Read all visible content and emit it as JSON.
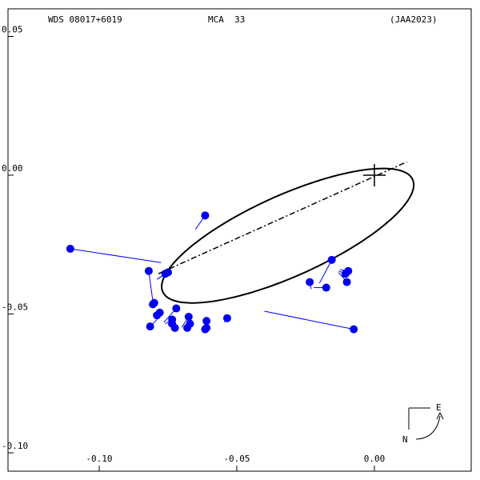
{
  "header": {
    "left": "WDS 08017+6019",
    "center": "MCA  33",
    "right": "(JAA2023)"
  },
  "compass": {
    "east": "E",
    "north": "N"
  },
  "chart_data": {
    "type": "scatter",
    "title": "",
    "xlabel": "",
    "ylabel": "",
    "xlim": [
      -0.11,
      0.01
    ],
    "ylim": [
      -0.1,
      0.05
    ],
    "x_ticks": [
      {
        "value": -0.1,
        "label": "-0.10"
      },
      {
        "value": -0.05,
        "label": "-0.05"
      },
      {
        "value": 0.0,
        "label": "0.00"
      }
    ],
    "y_ticks": [
      {
        "value": 0.05,
        "label": "0.05"
      },
      {
        "value": 0.0,
        "label": "0.00"
      },
      {
        "value": -0.05,
        "label": "-0.05"
      },
      {
        "value": -0.1,
        "label": "-0.10"
      }
    ],
    "primary": {
      "x": 0.0,
      "y": 0.0
    },
    "orbit_ellipse": {
      "center_x": -0.0315,
      "center_y": -0.0218,
      "semi_major": 0.0497,
      "semi_minor": 0.0146,
      "angle_deg": 24.0
    },
    "line_of_nodes": [
      [
        -0.0785,
        -0.0355
      ],
      [
        0.0118,
        0.0048
      ]
    ],
    "observations": [
      {
        "x": -0.1105,
        "y": -0.0265,
        "ox": -0.0775,
        "oy": -0.0315
      },
      {
        "x": -0.0615,
        "y": -0.0145,
        "ox": -0.065,
        "oy": -0.0195
      },
      {
        "x": -0.082,
        "y": -0.0345,
        "ox": -0.0805,
        "oy": -0.0455
      },
      {
        "x": -0.076,
        "y": -0.0355,
        "ox": -0.079,
        "oy": -0.0375
      },
      {
        "x": -0.075,
        "y": -0.035,
        "ox": -0.079,
        "oy": -0.0375
      },
      {
        "x": -0.08,
        "y": -0.046,
        "ox": -0.081,
        "oy": -0.047
      },
      {
        "x": -0.0805,
        "y": -0.0465,
        "ox": -0.081,
        "oy": -0.047
      },
      {
        "x": -0.079,
        "y": -0.0505,
        "ox": -0.0805,
        "oy": -0.05
      },
      {
        "x": -0.078,
        "y": -0.0495,
        "ox": -0.08,
        "oy": -0.0505
      },
      {
        "x": -0.0815,
        "y": -0.0545,
        "ox": -0.079,
        "oy": -0.052
      },
      {
        "x": -0.072,
        "y": -0.048,
        "ox": -0.0765,
        "oy": -0.053
      },
      {
        "x": -0.0735,
        "y": -0.052,
        "ox": -0.076,
        "oy": -0.0535
      },
      {
        "x": -0.0735,
        "y": -0.0535,
        "ox": -0.075,
        "oy": -0.054
      },
      {
        "x": -0.0725,
        "y": -0.055,
        "ox": -0.074,
        "oy": -0.0545
      },
      {
        "x": -0.0675,
        "y": -0.051,
        "ox": -0.07,
        "oy": -0.0548
      },
      {
        "x": -0.067,
        "y": -0.0535,
        "ox": -0.069,
        "oy": -0.055
      },
      {
        "x": -0.068,
        "y": -0.055,
        "ox": -0.068,
        "oy": -0.055
      },
      {
        "x": -0.061,
        "y": -0.0525,
        "ox": -0.062,
        "oy": -0.0548
      },
      {
        "x": -0.0615,
        "y": -0.0555,
        "ox": -0.0615,
        "oy": -0.0548
      },
      {
        "x": -0.061,
        "y": -0.055,
        "ox": -0.061,
        "oy": -0.0547
      },
      {
        "x": -0.0535,
        "y": -0.0515,
        "ox": -0.0545,
        "oy": -0.053
      },
      {
        "x": -0.0075,
        "y": -0.0555,
        "ox": -0.04,
        "oy": -0.049
      },
      {
        "x": -0.0235,
        "y": -0.0385,
        "ox": -0.023,
        "oy": -0.041
      },
      {
        "x": -0.0175,
        "y": -0.0405,
        "ox": -0.022,
        "oy": -0.0405
      },
      {
        "x": -0.0155,
        "y": -0.0305,
        "ox": -0.02,
        "oy": -0.039
      },
      {
        "x": -0.0105,
        "y": -0.0355,
        "ox": -0.013,
        "oy": -0.0345
      },
      {
        "x": -0.0095,
        "y": -0.0345,
        "ox": -0.0125,
        "oy": -0.034
      },
      {
        "x": -0.01,
        "y": -0.0385,
        "ox": -0.013,
        "oy": -0.035
      }
    ]
  }
}
